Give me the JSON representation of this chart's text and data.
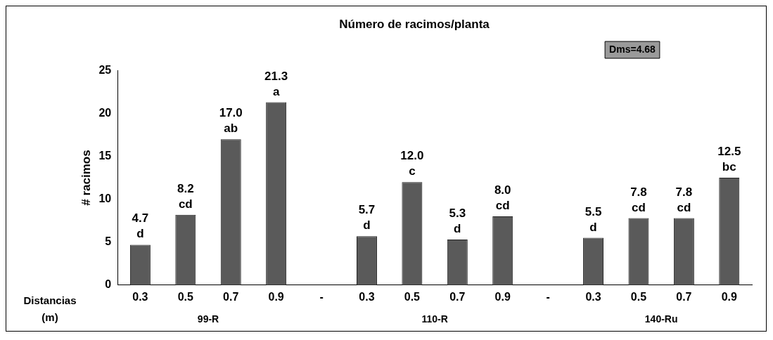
{
  "chart_data": {
    "type": "bar",
    "title": "Número de racimos/planta",
    "xlabel": "Distancias (m)",
    "ylabel": "# racimos",
    "categories": [
      "0.3",
      "0.5",
      "0.7",
      "0.9",
      "-",
      "0.3",
      "0.5",
      "0.7",
      "0.9",
      "-",
      "0.3",
      "0.5",
      "0.7",
      "0.9"
    ],
    "values": [
      4.7,
      8.2,
      17.0,
      21.3,
      null,
      5.7,
      12.0,
      5.3,
      8.0,
      null,
      5.5,
      7.8,
      7.8,
      12.5
    ],
    "value_labels": [
      "4.7\nd",
      "8.2\ncd",
      "17.0\nab",
      "21.3\na",
      null,
      "5.7\nd",
      "12.0\nc",
      "5.3\nd",
      "8.0\ncd",
      null,
      "5.5\nd",
      "7.8\ncd",
      "7.8\ncd",
      "12.5\nbc"
    ],
    "color": "#5a5a5a",
    "ylim": [
      0,
      25
    ],
    "yticks": [
      0,
      5,
      10,
      15,
      20,
      25
    ],
    "grid": false,
    "legend": false,
    "annotations": [
      "Dms=4.68",
      "99-R",
      "110-R",
      "140-Ru"
    ]
  }
}
